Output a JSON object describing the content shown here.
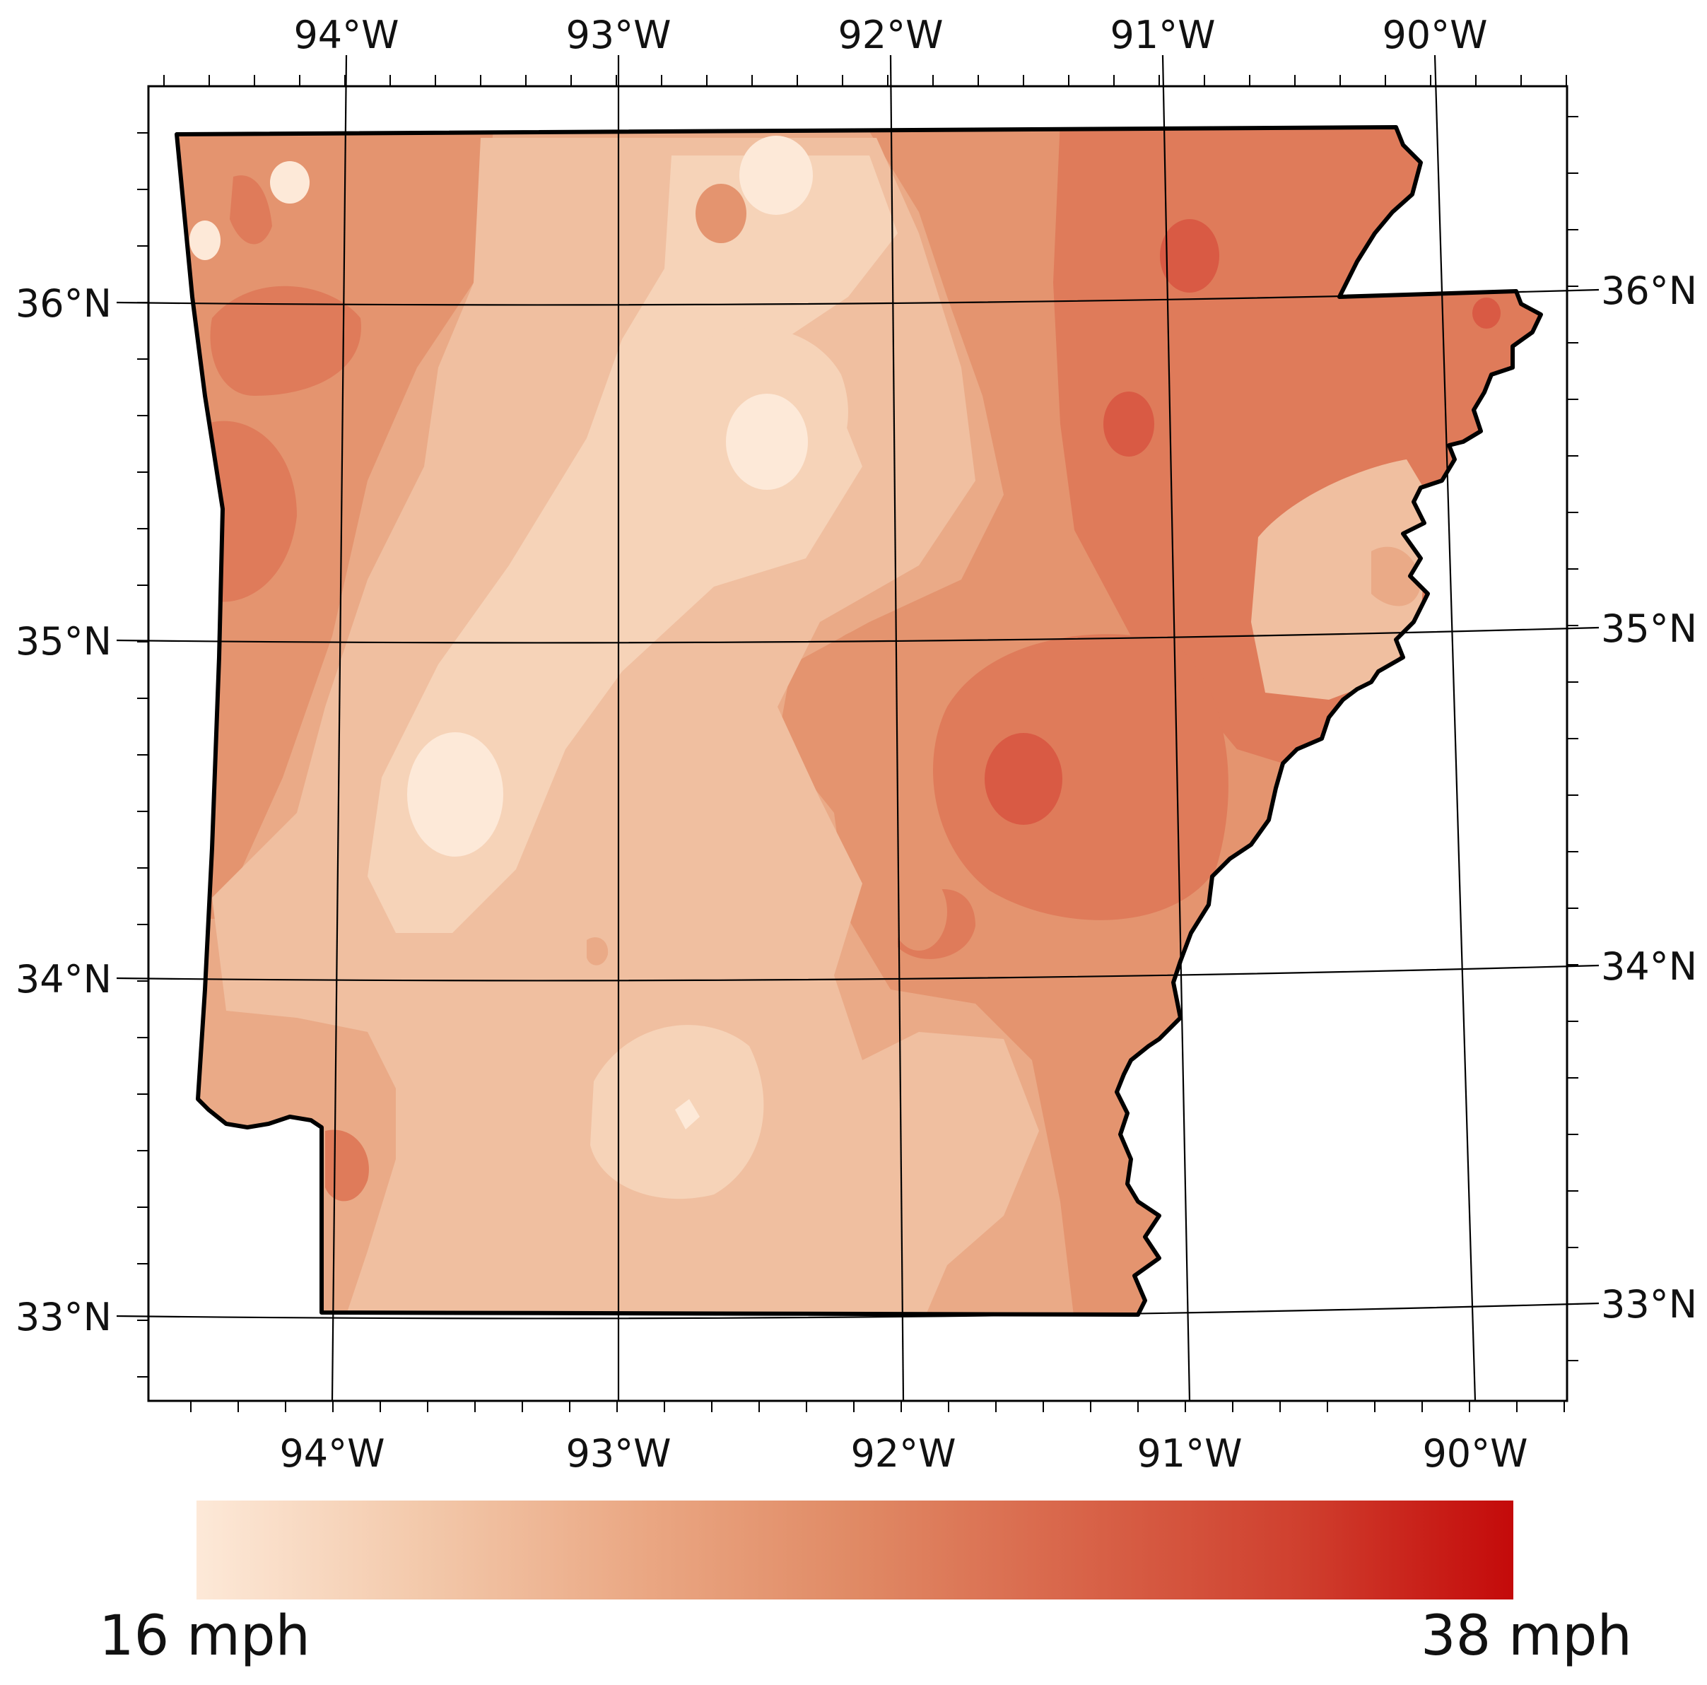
{
  "map": {
    "region": "Arkansas",
    "projection": "Lambert conformal",
    "graticule": {
      "longitudes": [
        -94,
        -93,
        -92,
        -91,
        -90
      ],
      "latitudes": [
        33,
        34,
        35,
        36
      ],
      "top_labels": [
        "94°W",
        "93°W",
        "92°W",
        "91°W",
        "90°W"
      ],
      "bottom_labels": [
        "94°W",
        "93°W",
        "92°W",
        "91°W",
        "90°W"
      ],
      "left_labels": [
        "36°N",
        "35°N",
        "34°N",
        "33°N"
      ],
      "right_labels": [
        "36°N",
        "35°N",
        "34°N",
        "33°N"
      ]
    },
    "fill": {
      "type": "filled contour",
      "variable": "wind speed",
      "low_zones": [
        "north-central Ozarks",
        "west-central",
        "south-central"
      ],
      "high_zones": [
        "northeast",
        "east-central"
      ]
    },
    "colors": {
      "levels": [
        "#fde9d8",
        "#f6d3b8",
        "#f0bfa0",
        "#eaaa87",
        "#e4946f",
        "#df7b5a",
        "#d95a44",
        "#c41a10"
      ],
      "border": "#000000",
      "grid": "#000000"
    }
  },
  "legend": {
    "min_label": "16 mph",
    "max_label": "38 mph",
    "min_value": 16,
    "max_value": 38,
    "gradient": [
      "#fde9d8",
      "#f3c9ab",
      "#eaa783",
      "#e08a65",
      "#d86449",
      "#cf3f2e",
      "#c40a0a"
    ]
  }
}
